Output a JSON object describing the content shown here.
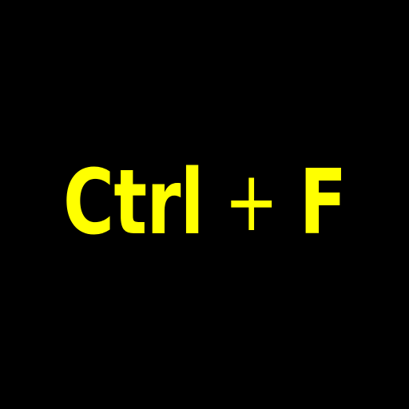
{
  "shortcut": {
    "modifier": "Ctrl",
    "separator": "+",
    "key": "F"
  },
  "colors": {
    "background": "#000000",
    "text": "#FFFF00"
  }
}
